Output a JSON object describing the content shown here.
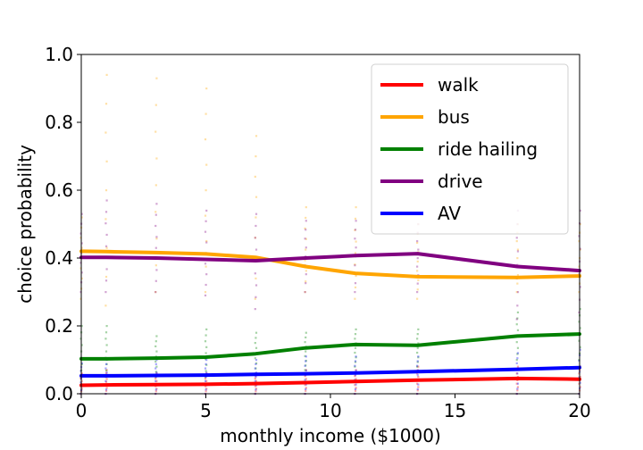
{
  "chart_data": {
    "type": "line",
    "title": "",
    "xlabel": "monthly income ($1000)",
    "ylabel": "choice probability",
    "xlim": [
      0,
      20
    ],
    "ylim": [
      0,
      1.0
    ],
    "xticks": [
      0,
      5,
      10,
      15,
      20
    ],
    "yticks": [
      0.0,
      0.2,
      0.4,
      0.6,
      0.8,
      1.0
    ],
    "xtick_labels": [
      "0",
      "5",
      "10",
      "15",
      "20"
    ],
    "ytick_labels": [
      "0.0",
      "0.2",
      "0.4",
      "0.6",
      "0.8",
      "1.0"
    ],
    "grid": false,
    "legend_position": "top-right",
    "x": [
      0,
      1,
      3,
      5,
      7,
      9,
      11,
      13.5,
      17.5,
      20
    ],
    "series": [
      {
        "name": "walk",
        "color": "#ff0000",
        "values": [
          0.025,
          0.026,
          0.027,
          0.028,
          0.03,
          0.033,
          0.036,
          0.04,
          0.045,
          0.043
        ]
      },
      {
        "name": "bus",
        "color": "#ffa500",
        "values": [
          0.42,
          0.419,
          0.416,
          0.412,
          0.402,
          0.375,
          0.355,
          0.345,
          0.343,
          0.347
        ]
      },
      {
        "name": "ride hailing",
        "color": "#008000",
        "values": [
          0.103,
          0.103,
          0.105,
          0.108,
          0.118,
          0.135,
          0.145,
          0.143,
          0.17,
          0.176
        ]
      },
      {
        "name": "drive",
        "color": "#800080",
        "values": [
          0.402,
          0.402,
          0.4,
          0.396,
          0.392,
          0.4,
          0.407,
          0.413,
          0.375,
          0.363
        ]
      },
      {
        "name": "AV",
        "color": "#0000ff",
        "values": [
          0.053,
          0.053,
          0.054,
          0.055,
          0.057,
          0.059,
          0.061,
          0.065,
          0.072,
          0.077
        ]
      }
    ],
    "scatter": {
      "x_positions": [
        0,
        1,
        3,
        5,
        7,
        9,
        11,
        13.5,
        17.5,
        20
      ],
      "groups": [
        {
          "series": "walk",
          "color": "#ff0000",
          "ranges": [
            [
              0.0,
              0.06
            ],
            [
              0.0,
              0.07
            ],
            [
              0.0,
              0.06
            ],
            [
              0.0,
              0.06
            ],
            [
              0.0,
              0.06
            ],
            [
              0.0,
              0.07
            ],
            [
              0.0,
              0.07
            ],
            [
              0.0,
              0.08
            ],
            [
              0.0,
              0.08
            ],
            [
              0.0,
              0.08
            ]
          ]
        },
        {
          "series": "bus",
          "color": "#ffa500",
          "ranges": [
            [
              0.28,
              0.52
            ],
            [
              0.26,
              0.94
            ],
            [
              0.3,
              0.93
            ],
            [
              0.3,
              0.9
            ],
            [
              0.28,
              0.76
            ],
            [
              0.3,
              0.55
            ],
            [
              0.28,
              0.55
            ],
            [
              0.28,
              0.5
            ],
            [
              0.3,
              0.5
            ],
            [
              0.3,
              0.5
            ]
          ]
        },
        {
          "series": "ride hailing",
          "color": "#008000",
          "ranges": [
            [
              0.05,
              0.2
            ],
            [
              0.05,
              0.2
            ],
            [
              0.05,
              0.17
            ],
            [
              0.05,
              0.19
            ],
            [
              0.06,
              0.18
            ],
            [
              0.07,
              0.18
            ],
            [
              0.08,
              0.19
            ],
            [
              0.08,
              0.19
            ],
            [
              0.1,
              0.24
            ],
            [
              0.1,
              0.25
            ]
          ]
        },
        {
          "series": "drive",
          "color": "#800080",
          "ranges": [
            [
              0.3,
              0.53
            ],
            [
              0.3,
              0.57
            ],
            [
              0.3,
              0.56
            ],
            [
              0.29,
              0.54
            ],
            [
              0.25,
              0.53
            ],
            [
              0.3,
              0.51
            ],
            [
              0.3,
              0.51
            ],
            [
              0.3,
              0.5
            ],
            [
              0.22,
              0.54
            ],
            [
              0.24,
              0.54
            ]
          ]
        },
        {
          "series": "AV",
          "color": "#0000ff",
          "ranges": [
            [
              0.0,
              0.09
            ],
            [
              0.0,
              0.1
            ],
            [
              0.0,
              0.1
            ],
            [
              0.0,
              0.1
            ],
            [
              0.0,
              0.1
            ],
            [
              0.0,
              0.11
            ],
            [
              0.0,
              0.11
            ],
            [
              0.0,
              0.11
            ],
            [
              0.0,
              0.12
            ],
            [
              0.0,
              0.13
            ]
          ]
        }
      ]
    }
  }
}
